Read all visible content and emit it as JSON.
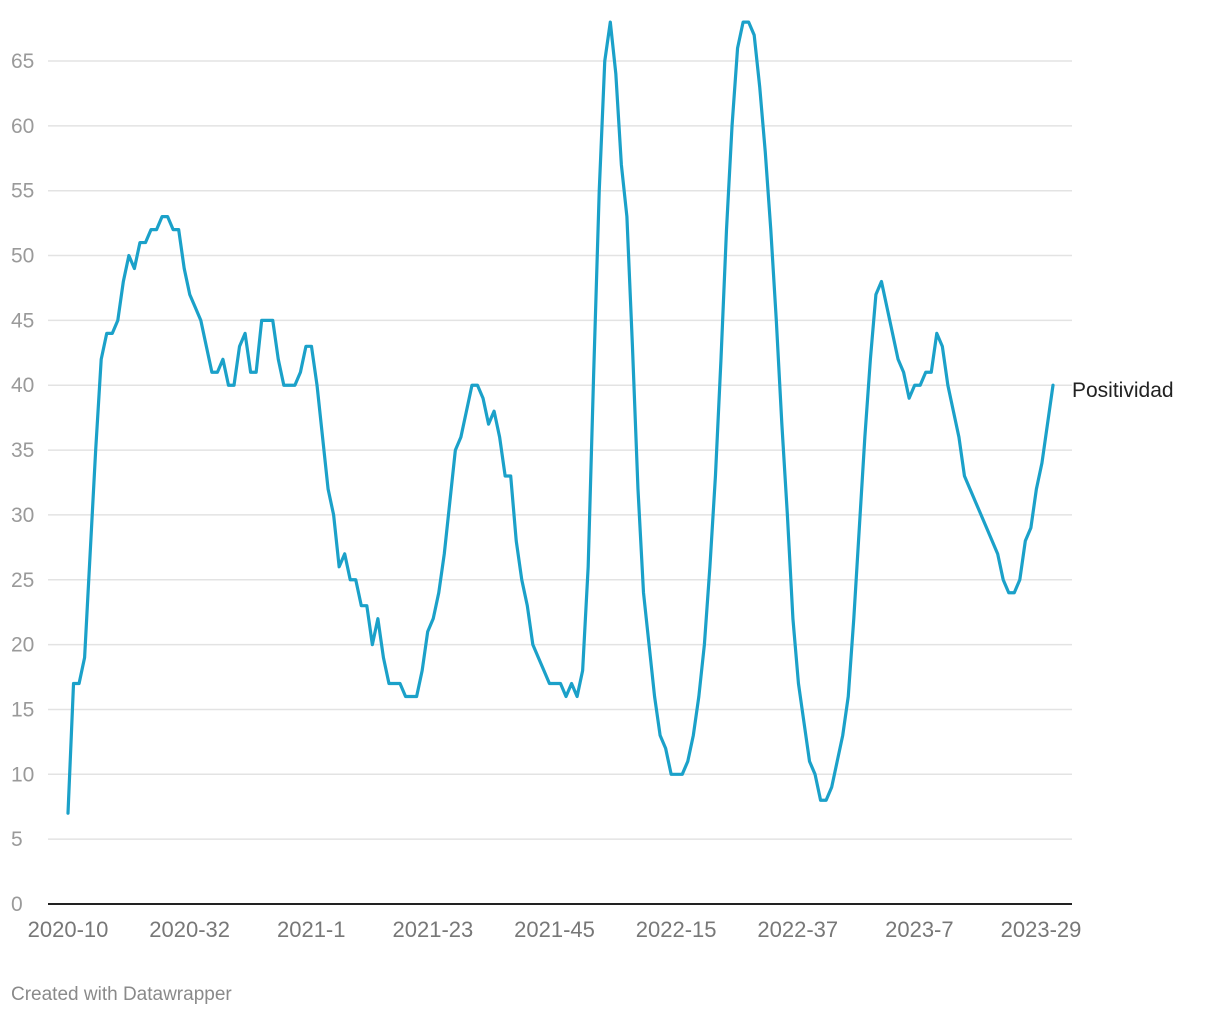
{
  "chart_data": {
    "type": "line",
    "title": "",
    "xlabel": "",
    "ylabel": "",
    "ylim": [
      0,
      68
    ],
    "y_ticks": [
      0,
      5,
      10,
      15,
      20,
      25,
      30,
      35,
      40,
      45,
      50,
      55,
      60,
      65
    ],
    "x_tick_labels": [
      "2020-10",
      "2020-32",
      "2021-1",
      "2021-23",
      "2021-45",
      "2022-15",
      "2022-37",
      "2023-7",
      "2023-29"
    ],
    "grid": true,
    "line_color": "#1ba1c9",
    "series": [
      {
        "name": "Positividad",
        "values": [
          7,
          17,
          17,
          19,
          27,
          35,
          42,
          44,
          44,
          45,
          48,
          50,
          49,
          51,
          51,
          52,
          52,
          53,
          53,
          52,
          52,
          49,
          47,
          46,
          45,
          43,
          41,
          41,
          42,
          40,
          40,
          43,
          44,
          41,
          41,
          45,
          45,
          45,
          42,
          40,
          40,
          40,
          41,
          43,
          43,
          40,
          36,
          32,
          30,
          26,
          27,
          25,
          25,
          23,
          23,
          20,
          22,
          19,
          17,
          17,
          17,
          16,
          16,
          16,
          18,
          21,
          22,
          24,
          27,
          31,
          35,
          36,
          38,
          40,
          40,
          39,
          37,
          38,
          36,
          33,
          33,
          28,
          25,
          23,
          20,
          19,
          18,
          17,
          17,
          17,
          16,
          17,
          16,
          18,
          26,
          41,
          55,
          65,
          68,
          64,
          57,
          53,
          43,
          32,
          24,
          20,
          16,
          13,
          12,
          10,
          10,
          10,
          11,
          13,
          16,
          20,
          26,
          33,
          42,
          52,
          60,
          66,
          68,
          68,
          67,
          63,
          58,
          52,
          45,
          37,
          30,
          22,
          17,
          14,
          11,
          10,
          8,
          8,
          9,
          11,
          13,
          16,
          22,
          29,
          36,
          42,
          47,
          48,
          46,
          44,
          42,
          41,
          39,
          40,
          40,
          41,
          41,
          44,
          43,
          40,
          38,
          36,
          33,
          32,
          31,
          30,
          29,
          28,
          27,
          25,
          24,
          24,
          25,
          28,
          29,
          32,
          34,
          37,
          40
        ]
      }
    ]
  },
  "footer": {
    "credit": "Created with Datawrapper"
  }
}
